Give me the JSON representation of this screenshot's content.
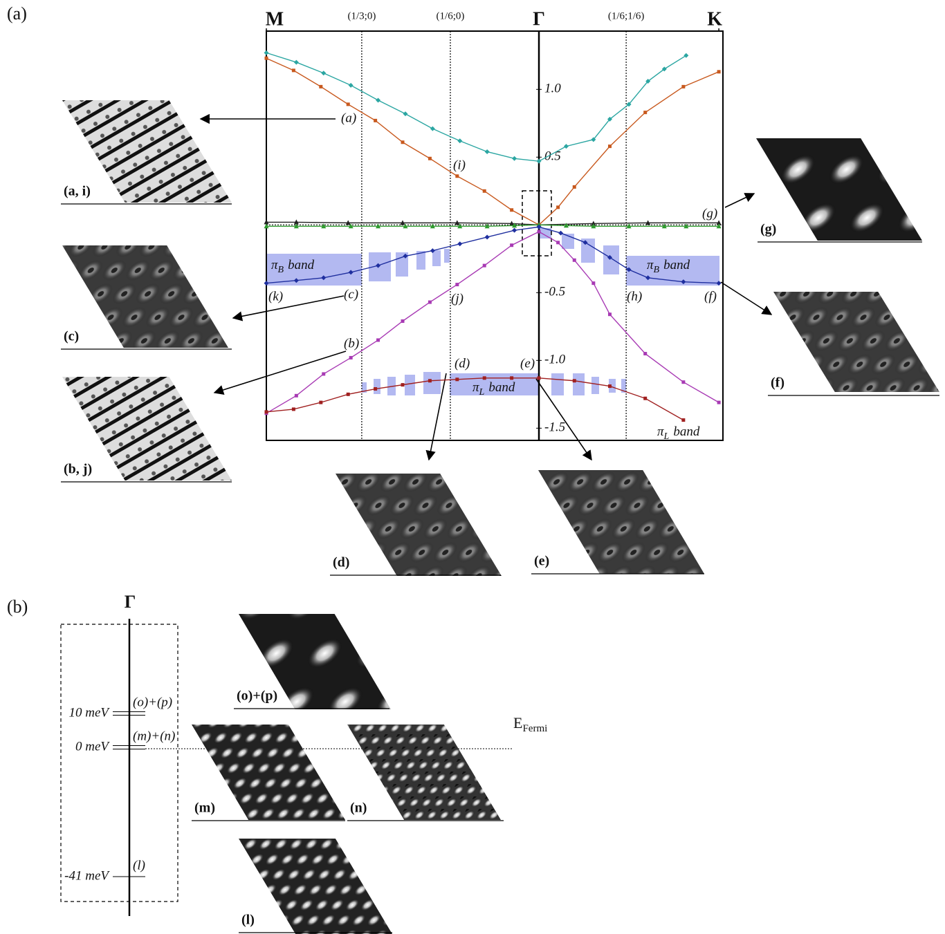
{
  "figure": {
    "panel_a_label": "(a)",
    "panel_b_label": "(b)"
  },
  "chart_data": {
    "type": "line",
    "xlim": [
      0,
      1.675
    ],
    "ylim": [
      -1.59,
      1.43
    ],
    "xticks": [
      {
        "value": 0,
        "label": "M"
      },
      {
        "value": 0.35,
        "label": "(1/3;0)"
      },
      {
        "value": 0.675,
        "label": "(1/6;0)"
      },
      {
        "value": 1,
        "label": "Γ"
      },
      {
        "value": 1.32,
        "label": "(1/6;1/6)"
      },
      {
        "value": 1.66,
        "label": "K"
      }
    ],
    "yticks": [
      {
        "value": 1,
        "label": "1.0"
      },
      0.5,
      -0.5,
      {
        "value": -1,
        "label": "-1.0"
      },
      -1.5
    ],
    "series": [
      {
        "color": "#2ba6a2",
        "marker": "diamond",
        "x": [
          0,
          0.11,
          0.21,
          0.31,
          0.41,
          0.51,
          0.61,
          0.71,
          0.81,
          0.91,
          1,
          1.1,
          1.2,
          1.26,
          1.33,
          1.4,
          1.46,
          1.54
        ],
        "values": [
          1.27,
          1.2,
          1.12,
          1.03,
          0.92,
          0.82,
          0.71,
          0.62,
          0.54,
          0.49,
          0.47,
          0.58,
          0.63,
          0.78,
          0.89,
          1.06,
          1.15,
          1.25
        ]
      },
      {
        "color": "#c8591e",
        "marker": "square",
        "x": [
          0,
          0.1,
          0.2,
          0.3,
          0.4,
          0.5,
          0.6,
          0.7,
          0.8,
          0.9,
          1,
          1.07,
          1.13,
          1.26,
          1.39,
          1.53,
          1.66
        ],
        "values": [
          1.23,
          1.14,
          1.02,
          0.89,
          0.77,
          0.61,
          0.49,
          0.36,
          0.25,
          0.11,
          0,
          0.13,
          0.28,
          0.58,
          0.83,
          1.02,
          1.13
        ]
      },
      {
        "color": "#222222",
        "marker": "triangle",
        "x": [
          0,
          0.11,
          0.3,
          0.5,
          0.7,
          0.9,
          1,
          1.2,
          1.4,
          1.66
        ],
        "values": [
          0.02,
          0.02,
          0.015,
          0.015,
          0.015,
          0.01,
          0,
          0.01,
          0.015,
          0.015
        ]
      },
      {
        "color": "#2f9a2f",
        "marker": "triangle",
        "x": [
          0,
          0.11,
          0.21,
          0.31,
          0.41,
          0.51,
          0.61,
          0.71,
          0.81,
          0.91,
          1,
          1.1,
          1.2,
          1.33,
          1.46,
          1.54,
          1.66
        ],
        "values": [
          -0.01,
          -0.01,
          -0.01,
          -0.01,
          -0.01,
          -0.01,
          -0.01,
          -0.01,
          -0.01,
          -0.005,
          0,
          -0.005,
          -0.01,
          -0.01,
          -0.01,
          -0.01,
          -0.01
        ]
      },
      {
        "color": "#1f2f9f",
        "marker": "diamond",
        "x": [
          0,
          0.11,
          0.21,
          0.31,
          0.41,
          0.51,
          0.61,
          0.71,
          0.81,
          0.91,
          1,
          1.08,
          1.17,
          1.26,
          1.33,
          1.4,
          1.53,
          1.66
        ],
        "values": [
          -0.43,
          -0.41,
          -0.39,
          -0.35,
          -0.3,
          -0.23,
          -0.19,
          -0.14,
          -0.09,
          -0.04,
          -0.015,
          -0.06,
          -0.13,
          -0.24,
          -0.33,
          -0.39,
          -0.42,
          -0.43
        ]
      },
      {
        "color": "#a83ab4",
        "marker": "square",
        "x": [
          0,
          0.11,
          0.21,
          0.31,
          0.41,
          0.5,
          0.6,
          0.7,
          0.8,
          0.9,
          1,
          1.07,
          1.13,
          1.2,
          1.26,
          1.39,
          1.53,
          1.66
        ],
        "values": [
          -1.39,
          -1.26,
          -1.1,
          -0.98,
          -0.85,
          -0.71,
          -0.57,
          -0.44,
          -0.3,
          -0.15,
          -0.05,
          -0.13,
          -0.26,
          -0.43,
          -0.66,
          -0.95,
          -1.16,
          -1.31
        ]
      },
      {
        "color": "#a02020",
        "marker": "square",
        "x": [
          0,
          0.1,
          0.2,
          0.3,
          0.4,
          0.5,
          0.6,
          0.7,
          0.8,
          0.9,
          1,
          1.13,
          1.26,
          1.39,
          1.53
        ],
        "values": [
          -1.38,
          -1.36,
          -1.31,
          -1.25,
          -1.21,
          -1.18,
          -1.15,
          -1.14,
          -1.13,
          -1.13,
          -1.13,
          -1.15,
          -1.19,
          -1.28,
          -1.44
        ]
      }
    ],
    "annotations": [
      "(a)",
      "(i)",
      "(g)",
      "(k)",
      "(c)",
      "(j)",
      "(h)",
      "(f)",
      "(b)",
      "(d)",
      "(e)"
    ],
    "band_labels": [
      {
        "symbol": "π",
        "sub": "B",
        "text": "band"
      },
      {
        "symbol": "π",
        "sub": "B",
        "text": "band"
      },
      {
        "symbol": "π",
        "sub": "L",
        "text": "band"
      },
      {
        "symbol": "π",
        "sub": "L",
        "text": "band"
      }
    ]
  },
  "thumbnails": [
    {
      "label": "(a, i)"
    },
    {
      "label": "(c)"
    },
    {
      "label": "(b, j)"
    },
    {
      "label": "(g)"
    },
    {
      "label": "(f)"
    },
    {
      "label": "(d)"
    },
    {
      "label": "(e)"
    },
    {
      "label": "(o)+(p)"
    },
    {
      "label": "(m)"
    },
    {
      "label": "(n)"
    },
    {
      "label": "(l)"
    }
  ],
  "level_diagram": {
    "point_label": "Γ",
    "levels": [
      {
        "energy": "10 meV",
        "state": "(o)+(p)"
      },
      {
        "energy": "0 meV",
        "state": "(m)+(n)"
      },
      {
        "energy": "-41 meV",
        "state": "(l)"
      }
    ],
    "fermi": {
      "main": "E",
      "sub": "Fermi"
    }
  }
}
